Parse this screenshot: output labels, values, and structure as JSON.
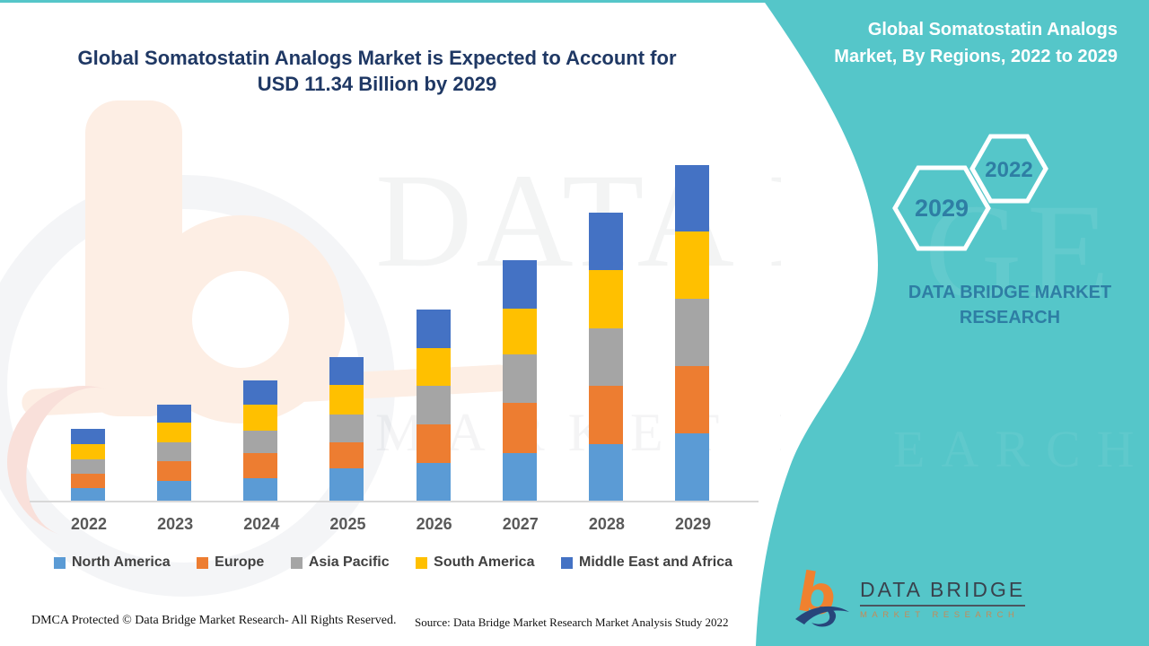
{
  "chart_data": {
    "type": "bar",
    "stacked": true,
    "title": "Global Somatostatin Analogs Market is Expected to Account for USD 11.34 Billion by 2029",
    "unit": "USD Billion",
    "xlabel": "",
    "ylabel": "",
    "ylim": [
      0,
      12
    ],
    "grid": false,
    "legend_position": "bottom",
    "categories": [
      "2022",
      "2023",
      "2024",
      "2025",
      "2026",
      "2027",
      "2028",
      "2029"
    ],
    "series": [
      {
        "name": "North America",
        "color": "#5B9BD5",
        "values": [
          0.42,
          0.66,
          0.76,
          1.08,
          1.26,
          1.62,
          1.92,
          2.28
        ]
      },
      {
        "name": "Europe",
        "color": "#ED7D31",
        "values": [
          0.49,
          0.66,
          0.84,
          0.89,
          1.31,
          1.67,
          1.97,
          2.27
        ]
      },
      {
        "name": "Asia Pacific",
        "color": "#A5A5A5",
        "values": [
          0.49,
          0.64,
          0.78,
          0.93,
          1.31,
          1.64,
          1.94,
          2.26
        ]
      },
      {
        "name": "South America",
        "color": "#FFC000",
        "values": [
          0.52,
          0.68,
          0.86,
          1.01,
          1.26,
          1.57,
          1.97,
          2.27
        ]
      },
      {
        "name": "Middle East and Africa",
        "color": "#4472C4",
        "values": [
          0.5,
          0.6,
          0.82,
          0.94,
          1.33,
          1.62,
          1.92,
          2.26
        ]
      }
    ],
    "totals": [
      2.42,
      3.24,
      4.06,
      4.85,
      6.47,
      8.12,
      9.72,
      11.34
    ]
  },
  "side_panel": {
    "title": "Global Somatostatin Analogs Market, By Regions, 2022 to 2029",
    "hexagon_back_label": "2029",
    "hexagon_front_label": "2022",
    "brand": "DATA BRIDGE MARKET RESEARCH",
    "accent_color": "#55C6C9",
    "text_color": "#2E7EA4"
  },
  "logo": {
    "name": "DATA BRIDGE",
    "tagline": "MARKET RESEARCH"
  },
  "watermark": {
    "line1": "DATA BRIDGE",
    "line2": "MARKET RESEARCH"
  },
  "footer": {
    "left": "DMCA Protected © Data Bridge Market Research- All Rights Reserved.",
    "right": "Source: Data Bridge Market Research Market Analysis Study 2022"
  }
}
